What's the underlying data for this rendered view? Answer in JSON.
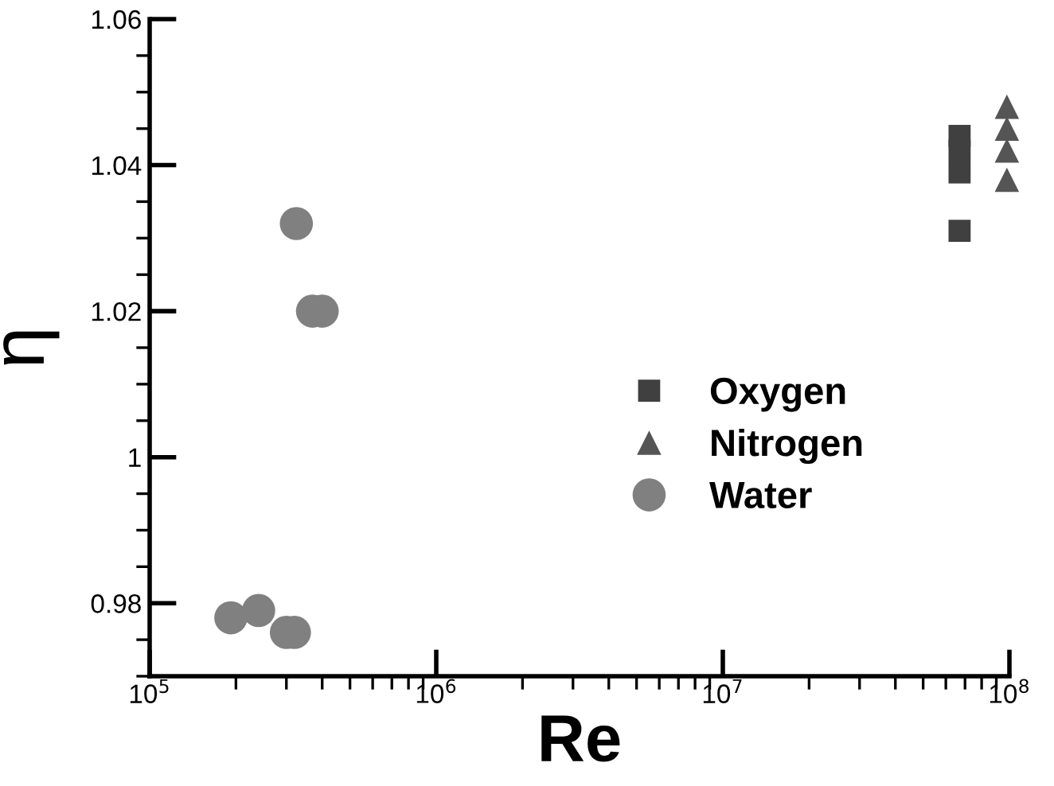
{
  "chart_data": {
    "type": "scatter",
    "xlabel": "Re",
    "ylabel": "η",
    "log": "x",
    "xlim": [
      100000,
      100000000
    ],
    "ylim": [
      0.97,
      1.06
    ],
    "xticks": [
      {
        "value": 100000,
        "label": "10$^{5}$"
      },
      {
        "value": 1000000,
        "label": "10$^{6}$"
      },
      {
        "value": 10000000,
        "label": "10$^{7}$"
      },
      {
        "value": 100000000,
        "label": "10$^{8}$"
      }
    ],
    "yticks": [
      0.98,
      1,
      1.02,
      1.04,
      1.06
    ],
    "legend": "right",
    "grid": false,
    "series": [
      {
        "name": "Oxygen",
        "color": "#404040",
        "marker": "square",
        "x": [
          67000000,
          67000000,
          67000000,
          67000000
        ],
        "values": [
          1.044,
          1.042,
          1.039,
          1.031
        ]
      },
      {
        "name": "Nitrogen",
        "color": "#555555",
        "marker": "triangle",
        "x": [
          98000000,
          98000000,
          98000000,
          98000000
        ],
        "values": [
          1.048,
          1.045,
          1.042,
          1.038
        ]
      },
      {
        "name": "Water",
        "color": "#808080",
        "marker": "circle",
        "x": [
          192000,
          240000,
          300000,
          320000,
          325000,
          370000,
          400000
        ],
        "values": [
          0.978,
          0.979,
          0.976,
          0.976,
          1.032,
          1.02,
          1.02
        ]
      }
    ]
  }
}
